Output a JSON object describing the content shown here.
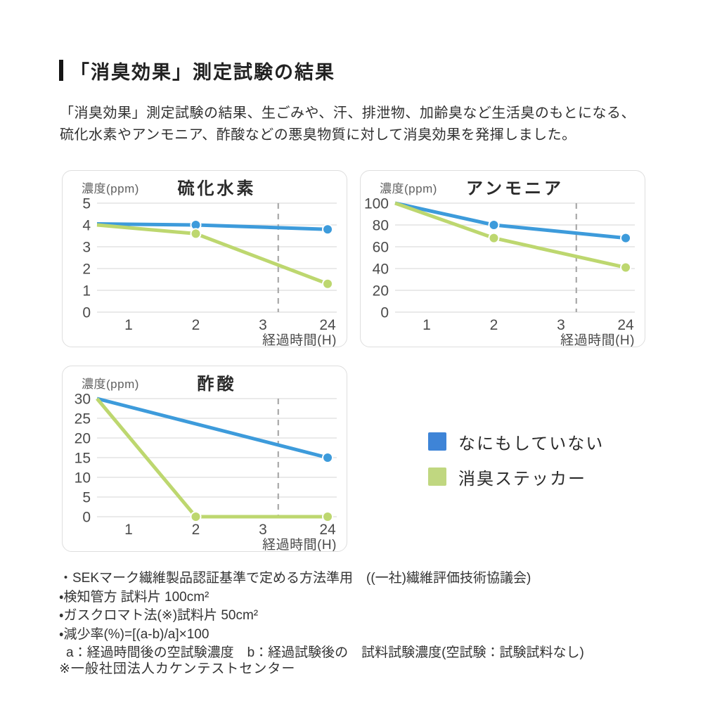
{
  "header": {
    "title": "「消臭効果」測定試験の結果"
  },
  "intro": {
    "line1": "「消臭効果」測定試験の結果、生ごみや、汗、排泄物、加齢臭など生活臭のもとになる、",
    "line2": "硫化水素やアンモニア、酢酸などの悪臭物質に対して消臭効果を発揮しました。"
  },
  "colors": {
    "blue_line": "#3d9bdb",
    "green_line": "#bdd76f",
    "legend_blue": "#3e84d7",
    "legend_green": "#c0d780",
    "grid": "#e4e4e4",
    "dashed_break": "#a9a9a9",
    "panel_border": "#dedede",
    "axis_text": "#4b4b4b"
  },
  "chart_data": [
    {
      "type": "line",
      "title": "硫化水素",
      "ylabel": "濃度(ppm)",
      "xlabel": "経過時間(H)",
      "x_categories": [
        "1",
        "2",
        "3",
        "24"
      ],
      "ylim": [
        0,
        5
      ],
      "y_ticks": [
        5,
        4,
        3,
        2,
        1,
        0
      ],
      "axis_break_after": "3",
      "grid": true,
      "series": [
        {
          "name": "なにもしていない",
          "color": "#3d9bdb",
          "points": [
            {
              "x": "start",
              "y": 4.05
            },
            {
              "x": "2",
              "y": 4.0,
              "dot": true
            },
            {
              "x": "24",
              "y": 3.8,
              "dot": true
            }
          ]
        },
        {
          "name": "消臭ステッカー",
          "color": "#bdd76f",
          "points": [
            {
              "x": "start",
              "y": 4.0
            },
            {
              "x": "2",
              "y": 3.6,
              "dot": true
            },
            {
              "x": "24",
              "y": 1.3,
              "dot": true
            }
          ]
        }
      ]
    },
    {
      "type": "line",
      "title": "アンモニア",
      "ylabel": "濃度(ppm)",
      "xlabel": "経過時間(H)",
      "x_categories": [
        "1",
        "2",
        "3",
        "24"
      ],
      "ylim": [
        0,
        100
      ],
      "y_ticks": [
        100,
        80,
        60,
        40,
        20,
        0
      ],
      "axis_break_after": "3",
      "grid": true,
      "series": [
        {
          "name": "なにもしていない",
          "color": "#3d9bdb",
          "points": [
            {
              "x": "start",
              "y": 100
            },
            {
              "x": "2",
              "y": 80,
              "dot": true
            },
            {
              "x": "24",
              "y": 68,
              "dot": true
            }
          ]
        },
        {
          "name": "消臭ステッカー",
          "color": "#bdd76f",
          "points": [
            {
              "x": "start",
              "y": 100
            },
            {
              "x": "2",
              "y": 68,
              "dot": true
            },
            {
              "x": "24",
              "y": 41,
              "dot": true
            }
          ]
        }
      ]
    },
    {
      "type": "line",
      "title": "酢酸",
      "ylabel": "濃度(ppm)",
      "xlabel": "経過時間(H)",
      "x_categories": [
        "1",
        "2",
        "3",
        "24"
      ],
      "ylim": [
        0,
        30
      ],
      "y_ticks": [
        30,
        25,
        20,
        15,
        10,
        5,
        0
      ],
      "axis_break_after": "3",
      "grid": true,
      "series": [
        {
          "name": "なにもしていない",
          "color": "#3d9bdb",
          "points": [
            {
              "x": "start",
              "y": 30
            },
            {
              "x": "24",
              "y": 15,
              "dot": true
            }
          ]
        },
        {
          "name": "消臭ステッカー",
          "color": "#bdd76f",
          "points": [
            {
              "x": "start",
              "y": 30
            },
            {
              "x": "2",
              "y": 0,
              "dot": true
            },
            {
              "x": "24",
              "y": 0,
              "dot": true
            }
          ]
        }
      ]
    }
  ],
  "legend": {
    "items": [
      {
        "label": "なにもしていない",
        "color": "#3e84d7"
      },
      {
        "label": "消臭ステッカー",
        "color": "#c0d780"
      }
    ]
  },
  "footnotes": {
    "items": [
      {
        "text": "・SEKマーク繊維製品認証基準で定める方法準用　((一社)繊維評価技術協議会)"
      },
      {
        "text": "・検知管方 試料片 100cm²"
      },
      {
        "text": "・ガスクロマト法(※)試料片 50cm²"
      },
      {
        "text": "・減少率(%)=[(a-b)/a]×100"
      },
      {
        "text": "a：経過時間後の空試験濃度　b：経過試験後の　試料試験濃度(空試験：試験試料なし)",
        "indent": true
      }
    ],
    "note": "※一般社団法人カケンテストセンター"
  }
}
